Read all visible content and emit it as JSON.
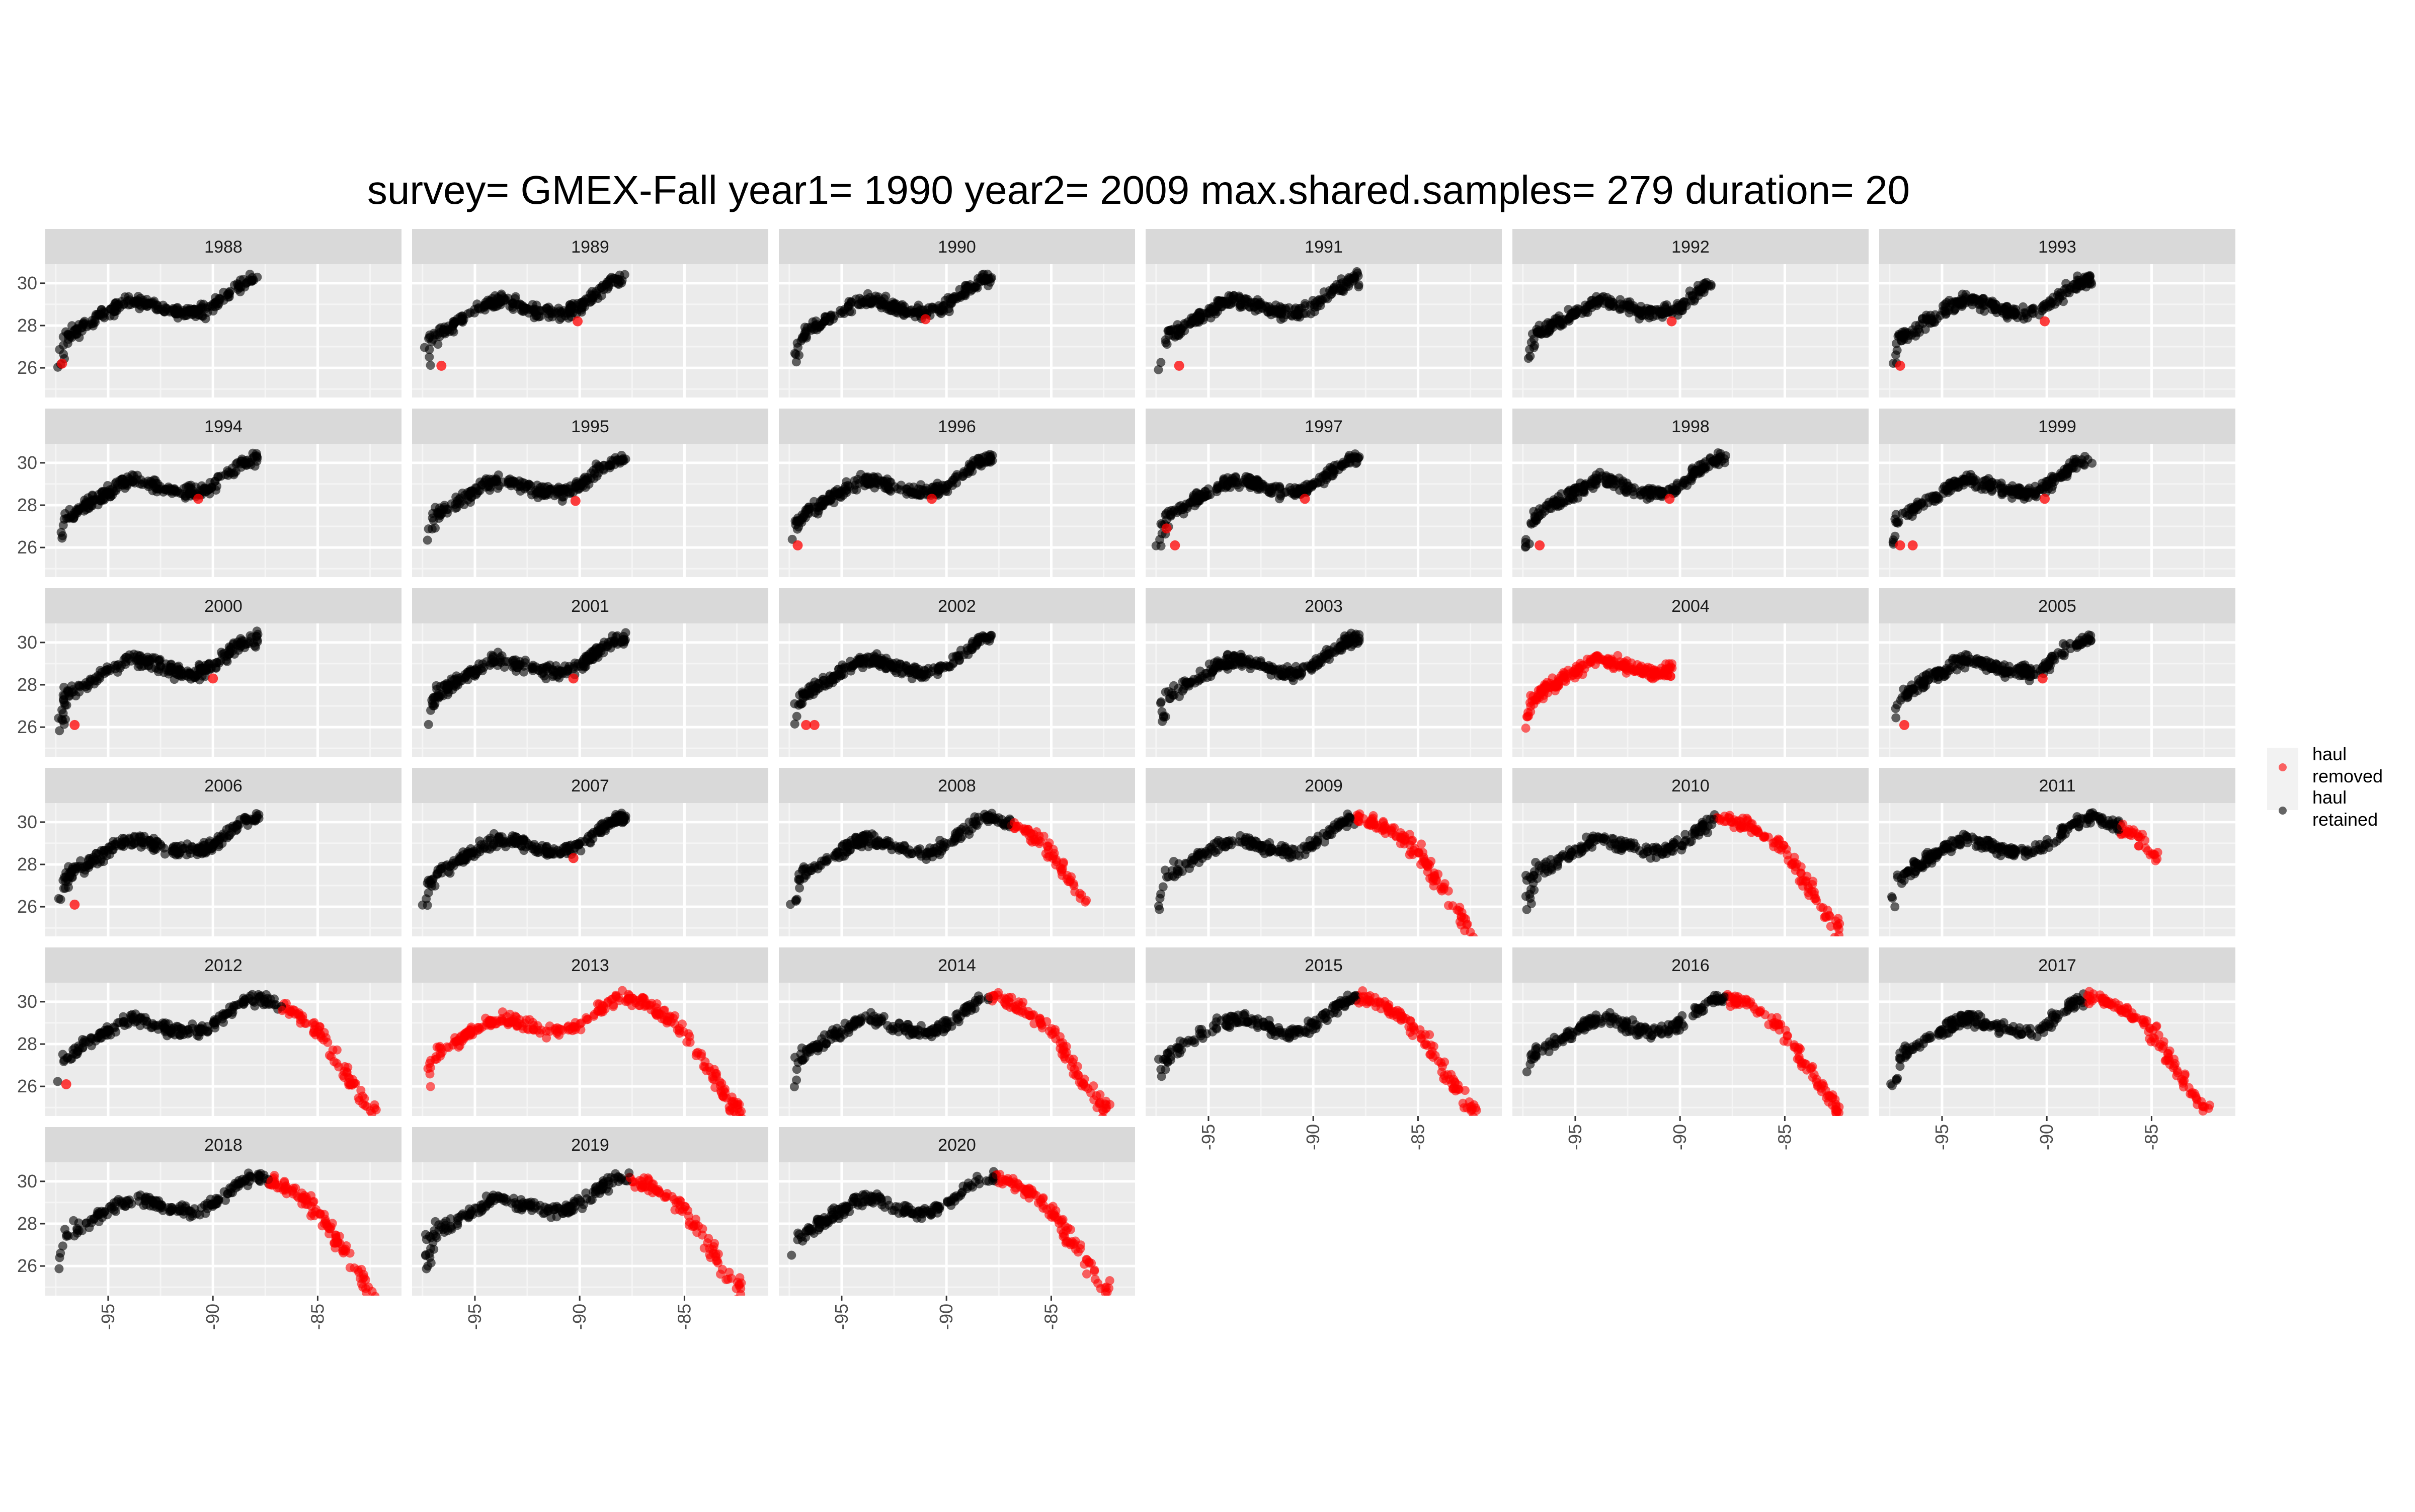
{
  "chart_data": {
    "type": "scatter",
    "title": "survey= GMEX-Fall year1= 1990 year2= 2009 max.shared.samples= 279 duration= 20",
    "xlabel": "",
    "ylabel": "",
    "facet_var": "year",
    "facets": [
      1988,
      1989,
      1990,
      1991,
      1992,
      1993,
      1994,
      1995,
      1996,
      1997,
      1998,
      1999,
      2000,
      2001,
      2002,
      2003,
      2004,
      2005,
      2006,
      2007,
      2008,
      2009,
      2010,
      2011,
      2012,
      2013,
      2014,
      2015,
      2016,
      2017,
      2018,
      2019,
      2020
    ],
    "ncol": 6,
    "xlim": [
      -98,
      -81
    ],
    "ylim": [
      24.6,
      30.9
    ],
    "x_ticks": [
      -95,
      -90,
      -85
    ],
    "x_tick_labels": [
      "-95",
      "-90",
      "-85"
    ],
    "y_ticks": [
      26,
      28,
      30
    ],
    "y_tick_labels": [
      "26",
      "28",
      "30"
    ],
    "grid": true,
    "legend_position": "right",
    "series": [
      {
        "name": "haul removed",
        "color": "#ff0000"
      },
      {
        "name": "haul retained",
        "color": "#000000"
      }
    ],
    "legend": {
      "title": "",
      "items": [
        {
          "line1": "haul",
          "line2": "removed",
          "color": "#ff0000"
        },
        {
          "line1": "haul",
          "line2": "retained",
          "color": "#000000"
        }
      ]
    },
    "coastline_track": [
      [
        -97.3,
        26.1
      ],
      [
        -97.2,
        26.6
      ],
      [
        -97.1,
        27.2
      ],
      [
        -96.8,
        27.6
      ],
      [
        -96.2,
        27.9
      ],
      [
        -95.6,
        28.3
      ],
      [
        -95.0,
        28.6
      ],
      [
        -94.4,
        29.0
      ],
      [
        -93.8,
        29.2
      ],
      [
        -93.2,
        29.1
      ],
      [
        -92.6,
        28.9
      ],
      [
        -92.0,
        28.7
      ],
      [
        -91.4,
        28.6
      ],
      [
        -90.8,
        28.6
      ],
      [
        -90.2,
        28.8
      ],
      [
        -89.6,
        29.2
      ],
      [
        -89.0,
        29.7
      ],
      [
        -88.4,
        30.1
      ],
      [
        -87.8,
        30.2
      ],
      [
        -87.2,
        30.0
      ],
      [
        -86.6,
        29.8
      ],
      [
        -86.0,
        29.4
      ],
      [
        -85.4,
        29.0
      ],
      [
        -84.8,
        28.3
      ],
      [
        -84.2,
        27.4
      ],
      [
        -83.6,
        26.5
      ],
      [
        -83.0,
        25.6
      ],
      [
        -82.5,
        24.9
      ]
    ],
    "panels": [
      {
        "year": 1988,
        "xmax": -87.8,
        "removed": [
          [
            -97.2,
            26.2
          ]
        ],
        "retained_share": 1.0
      },
      {
        "year": 1989,
        "xmax": -87.8,
        "removed": [
          [
            -96.6,
            26.1
          ],
          [
            -90.1,
            28.2
          ]
        ],
        "retained_share": 1.0
      },
      {
        "year": 1990,
        "xmax": -87.8,
        "removed": [
          [
            -91.0,
            28.3
          ]
        ],
        "retained_share": 1.0
      },
      {
        "year": 1991,
        "xmax": -87.8,
        "removed": [
          [
            -96.4,
            26.1
          ]
        ],
        "retained_share": 1.0
      },
      {
        "year": 1992,
        "xmax": -88.5,
        "removed": [
          [
            -90.4,
            28.2
          ]
        ],
        "retained_share": 1.0
      },
      {
        "year": 1993,
        "xmax": -87.8,
        "removed": [
          [
            -97.0,
            26.1
          ],
          [
            -90.1,
            28.2
          ]
        ],
        "retained_share": 1.0
      },
      {
        "year": 1994,
        "xmax": -87.8,
        "removed": [
          [
            -90.7,
            28.3
          ]
        ],
        "retained_share": 1.0
      },
      {
        "year": 1995,
        "xmax": -87.8,
        "removed": [
          [
            -90.2,
            28.2
          ]
        ],
        "retained_share": 1.0
      },
      {
        "year": 1996,
        "xmax": -87.8,
        "removed": [
          [
            -97.1,
            26.1
          ],
          [
            -90.7,
            28.3
          ]
        ],
        "retained_share": 1.0
      },
      {
        "year": 1997,
        "xmax": -87.8,
        "removed": [
          [
            -96.6,
            26.1
          ],
          [
            -97.0,
            26.9
          ],
          [
            -90.4,
            28.3
          ]
        ],
        "retained_share": 1.0
      },
      {
        "year": 1998,
        "xmax": -87.8,
        "removed": [
          [
            -96.7,
            26.1
          ],
          [
            -90.5,
            28.3
          ]
        ],
        "retained_share": 1.0
      },
      {
        "year": 1999,
        "xmax": -87.8,
        "removed": [
          [
            -97.0,
            26.1
          ],
          [
            -96.4,
            26.1
          ],
          [
            -90.1,
            28.3
          ]
        ],
        "retained_share": 1.0
      },
      {
        "year": 2000,
        "xmax": -87.8,
        "removed": [
          [
            -96.6,
            26.1
          ],
          [
            -90.0,
            28.3
          ]
        ],
        "retained_share": 1.0
      },
      {
        "year": 2001,
        "xmax": -87.8,
        "removed": [
          [
            -90.3,
            28.3
          ]
        ],
        "retained_share": 1.0
      },
      {
        "year": 2002,
        "xmax": -87.8,
        "removed": [
          [
            -96.7,
            26.1
          ],
          [
            -96.3,
            26.1
          ]
        ],
        "retained_share": 1.0
      },
      {
        "year": 2003,
        "xmax": -87.8,
        "removed": [],
        "retained_share": 1.0
      },
      {
        "year": 2004,
        "xmax": -90.3,
        "removed": [],
        "retained_share": 0.0
      },
      {
        "year": 2005,
        "xmax": -87.8,
        "removed": [
          [
            -96.8,
            26.1
          ],
          [
            -90.2,
            28.3
          ]
        ],
        "retained_share": 1.0
      },
      {
        "year": 2006,
        "xmax": -87.8,
        "removed": [
          [
            -96.6,
            26.1
          ]
        ],
        "retained_share": 1.0
      },
      {
        "year": 2007,
        "xmax": -87.8,
        "removed": [
          [
            -90.3,
            28.3
          ]
        ],
        "retained_share": 1.0
      },
      {
        "year": 2008,
        "xmax": -83.3,
        "removed": [],
        "retained_share": 0.74
      },
      {
        "year": 2009,
        "xmax": -82.3,
        "removed": [],
        "retained_share": 0.62
      },
      {
        "year": 2010,
        "xmax": -82.3,
        "removed": [],
        "retained_share": 0.6
      },
      {
        "year": 2011,
        "xmax": -84.7,
        "removed": [],
        "retained_share": 0.86
      },
      {
        "year": 2012,
        "xmax": -82.2,
        "removed": [
          [
            -97.0,
            26.1
          ]
        ],
        "retained_share": 0.7
      },
      {
        "year": 2013,
        "xmax": -82.2,
        "removed": [],
        "retained_share": 0.0
      },
      {
        "year": 2014,
        "xmax": -82.2,
        "removed": [],
        "retained_share": 0.62
      },
      {
        "year": 2015,
        "xmax": -82.2,
        "removed": [],
        "retained_share": 0.62
      },
      {
        "year": 2016,
        "xmax": -82.4,
        "removed": [],
        "retained_share": 0.64
      },
      {
        "year": 2017,
        "xmax": -82.2,
        "removed": [],
        "retained_share": 0.6
      },
      {
        "year": 2018,
        "xmax": -82.2,
        "removed": [],
        "retained_share": 0.66
      },
      {
        "year": 2019,
        "xmax": -82.2,
        "removed": [],
        "retained_share": 0.64
      },
      {
        "year": 2020,
        "xmax": -82.2,
        "removed": [],
        "retained_share": 0.64
      }
    ]
  }
}
